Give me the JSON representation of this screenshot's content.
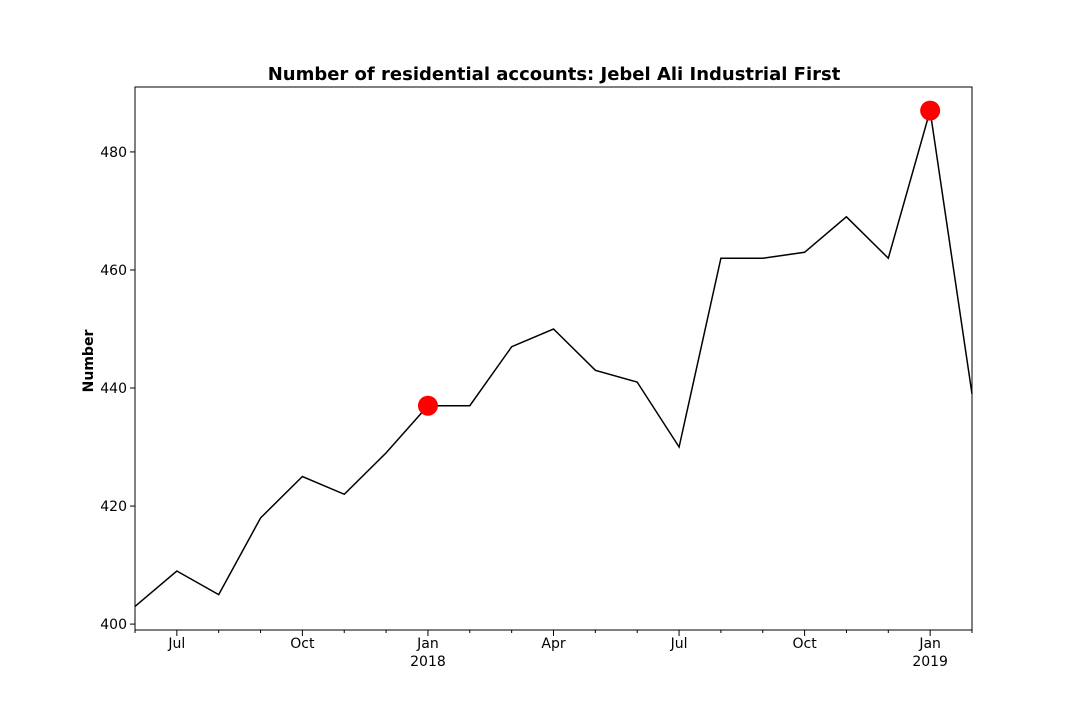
{
  "chart_data": {
    "type": "line",
    "title": "Number of residential accounts: Jebel Ali Industrial First",
    "xlabel": "",
    "ylabel": "Number",
    "x": [
      "2017-06",
      "2017-07",
      "2017-08",
      "2017-09",
      "2017-10",
      "2017-11",
      "2017-12",
      "2018-01",
      "2018-02",
      "2018-03",
      "2018-04",
      "2018-05",
      "2018-06",
      "2018-07",
      "2018-08",
      "2018-09",
      "2018-10",
      "2018-11",
      "2018-12",
      "2019-01",
      "2019-02"
    ],
    "values": [
      403,
      409,
      405,
      418,
      425,
      422,
      429,
      437,
      437,
      447,
      450,
      443,
      441,
      430,
      462,
      462,
      463,
      469,
      462,
      487,
      439
    ],
    "highlighted_points": [
      {
        "x": "2018-01",
        "y": 437
      },
      {
        "x": "2019-01",
        "y": 487
      }
    ],
    "line_color": "#000000",
    "marker_color": "#ff0000",
    "ylim": [
      399,
      491
    ],
    "xlim": [
      "2017-06",
      "2019-02"
    ],
    "yticks": [
      400,
      420,
      440,
      460,
      480
    ],
    "xticks": [
      {
        "x": "2017-07",
        "label": "Jul",
        "sublabel": ""
      },
      {
        "x": "2017-10",
        "label": "Oct",
        "sublabel": ""
      },
      {
        "x": "2018-01",
        "label": "Jan",
        "sublabel": "2018"
      },
      {
        "x": "2018-04",
        "label": "Apr",
        "sublabel": ""
      },
      {
        "x": "2018-07",
        "label": "Jul",
        "sublabel": ""
      },
      {
        "x": "2018-10",
        "label": "Oct",
        "sublabel": ""
      },
      {
        "x": "2019-01",
        "label": "Jan",
        "sublabel": "2019"
      }
    ],
    "grid": false,
    "legend": "none"
  }
}
